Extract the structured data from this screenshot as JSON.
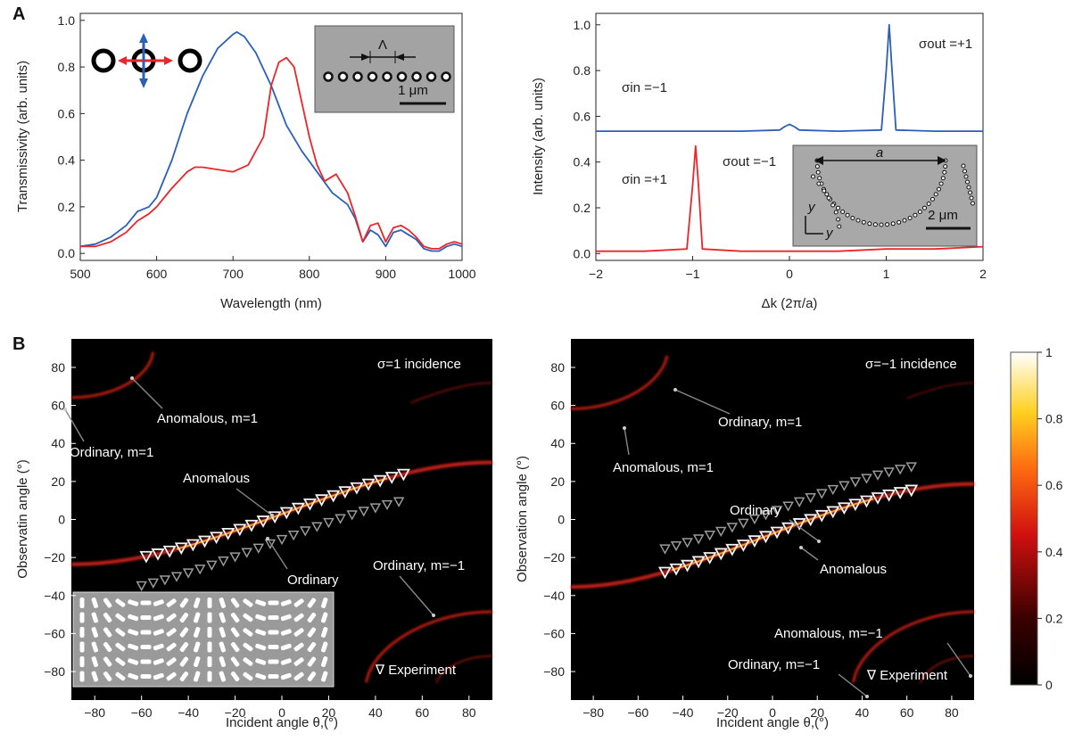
{
  "panel_labels": [
    "A",
    "B"
  ],
  "colors": {
    "blue": "#2b5fb8",
    "red": "#e8262b",
    "map_bg": "#000000"
  },
  "chart_data": [
    {
      "type": "line",
      "xlabel": "Wavelength (nm)",
      "ylabel": "Transmissivity (arb. units)",
      "xlim": [
        500,
        1000
      ],
      "ylim": [
        -0.03,
        1.03
      ],
      "xticks": [
        "500",
        "600",
        "700",
        "800",
        "900",
        "1000"
      ],
      "yticks": [
        "0.0",
        "0.2",
        "0.4",
        "0.6",
        "0.8",
        "1.0"
      ],
      "inset": {
        "period_symbol": "Λ",
        "scale_bar": "1 μm"
      },
      "series": [
        {
          "color": "#2b5fb8",
          "x": [
            500,
            520,
            540,
            560,
            575,
            590,
            600,
            620,
            640,
            660,
            680,
            700,
            705,
            715,
            730,
            750,
            770,
            790,
            810,
            830,
            850,
            860,
            870,
            880,
            890,
            900,
            910,
            920,
            930,
            940,
            950,
            960,
            970,
            980,
            990,
            1000
          ],
          "y": [
            0.03,
            0.04,
            0.07,
            0.12,
            0.18,
            0.2,
            0.24,
            0.4,
            0.6,
            0.76,
            0.88,
            0.94,
            0.95,
            0.93,
            0.86,
            0.72,
            0.55,
            0.44,
            0.35,
            0.26,
            0.21,
            0.15,
            0.05,
            0.1,
            0.08,
            0.03,
            0.09,
            0.1,
            0.08,
            0.06,
            0.02,
            0.01,
            0.01,
            0.03,
            0.04,
            0.03
          ]
        },
        {
          "color": "#e8262b",
          "x": [
            500,
            520,
            540,
            560,
            575,
            590,
            600,
            620,
            640,
            650,
            660,
            680,
            700,
            720,
            740,
            750,
            760,
            770,
            780,
            790,
            800,
            810,
            820,
            835,
            850,
            860,
            870,
            880,
            890,
            900,
            910,
            920,
            930,
            940,
            950,
            960,
            970,
            980,
            990,
            1000
          ],
          "y": [
            0.03,
            0.03,
            0.05,
            0.09,
            0.14,
            0.17,
            0.2,
            0.28,
            0.35,
            0.37,
            0.37,
            0.36,
            0.35,
            0.38,
            0.5,
            0.72,
            0.82,
            0.84,
            0.8,
            0.65,
            0.5,
            0.38,
            0.31,
            0.34,
            0.26,
            0.16,
            0.05,
            0.12,
            0.13,
            0.05,
            0.11,
            0.12,
            0.1,
            0.07,
            0.03,
            0.02,
            0.02,
            0.04,
            0.05,
            0.04
          ]
        }
      ]
    },
    {
      "type": "line",
      "xlabel": "Δk (2π/a)",
      "ylabel": "Intensity (arb. units)",
      "xlim": [
        -2,
        2
      ],
      "ylim": [
        -0.03,
        1.05
      ],
      "xticks": [
        "−2",
        "−1",
        "0",
        "1",
        "2"
      ],
      "yticks": [
        "0.0",
        "0.2",
        "0.4",
        "0.6",
        "0.8",
        "1.0"
      ],
      "annotations": {
        "s_in_top": "σin =−1",
        "s_out_top": "σout =+1",
        "s_in_bot": "σin =+1",
        "s_out_bot": "σout =−1"
      },
      "inset": {
        "length_label": "a",
        "axis_1": "y",
        "axis_2": "y",
        "scale_bar": "2 μm"
      },
      "series": [
        {
          "color": "#2b5fb8",
          "x": [
            -2,
            -1.5,
            -1,
            -0.5,
            -0.1,
            -0.05,
            0,
            0.05,
            0.1,
            0.5,
            0.95,
            1.0,
            1.03,
            1.06,
            1.1,
            1.5,
            2
          ],
          "y": [
            0.535,
            0.535,
            0.535,
            0.535,
            0.54,
            0.555,
            0.565,
            0.555,
            0.54,
            0.535,
            0.54,
            0.8,
            1.0,
            0.8,
            0.54,
            0.535,
            0.535
          ]
        },
        {
          "color": "#e8262b",
          "x": [
            -2,
            -1.5,
            -1.06,
            -1.0,
            -0.97,
            -0.94,
            -0.9,
            -0.5,
            0,
            0.5,
            1,
            1.5,
            2
          ],
          "y": [
            0.01,
            0.01,
            0.02,
            0.3,
            0.47,
            0.3,
            0.02,
            0.01,
            0.01,
            0.01,
            0.02,
            0.02,
            0.03
          ]
        }
      ]
    },
    {
      "type": "heatmap",
      "xlabel": "Incident angle θ,(°)",
      "ylabel": "Observatin angle (°)",
      "xlim": [
        -90,
        90
      ],
      "ylim": [
        -95,
        95
      ],
      "xticks": [
        "−80",
        "−60",
        "−40",
        "−20",
        "0",
        "20",
        "40",
        "60",
        "80"
      ],
      "yticks": [
        "80",
        "60",
        "40",
        "20",
        "0",
        "−20",
        "−40",
        "−60",
        "−80"
      ],
      "title_note": "σ=1 incidence",
      "legend": "∇ Experiment",
      "labels": [
        "Anomalous, m=1",
        "Ordinary, m=1",
        "Anomalous",
        "Ordinary",
        "Ordinary, m=−1"
      ],
      "anomalous_points_x": [
        -58,
        -53,
        -48,
        -43,
        -38,
        -33,
        -28,
        -23,
        -18,
        -13,
        -8,
        -3,
        2,
        7,
        12,
        17,
        22,
        27,
        32,
        37,
        42,
        47,
        52
      ],
      "ordinary_points_x": [
        -60,
        -55,
        -50,
        -45,
        -40,
        -35,
        -30,
        -25,
        -20,
        -15,
        -10,
        -5,
        0,
        5,
        10,
        15,
        20,
        25,
        30,
        35,
        40,
        45,
        50
      ]
    },
    {
      "type": "heatmap",
      "xlabel": "Incident angle θ,(°)",
      "ylabel": "Observation angle (°)",
      "xlim": [
        -90,
        90
      ],
      "ylim": [
        -95,
        95
      ],
      "xticks": [
        "−80",
        "−60",
        "−40",
        "−20",
        "0",
        "20",
        "40",
        "60",
        "80"
      ],
      "yticks": [
        "80",
        "60",
        "40",
        "20",
        "0",
        "−20",
        "−40",
        "−60",
        "−80"
      ],
      "title_note": "σ=−1 incidence",
      "legend": "∇ Experiment",
      "labels": [
        "Ordinary, m=1",
        "Anomalous, m=1",
        "Ordinary",
        "Anomalous",
        "Anomalous, m=−1",
        "Ordinary, m=−1"
      ],
      "anomalous_points_x": [
        -48,
        -43,
        -38,
        -33,
        -28,
        -23,
        -18,
        -13,
        -8,
        -3,
        2,
        7,
        12,
        17,
        22,
        27,
        32,
        37,
        42,
        47,
        52,
        57,
        62
      ],
      "ordinary_points_x": [
        -48,
        -43,
        -38,
        -33,
        -28,
        -23,
        -18,
        -13,
        -8,
        -3,
        2,
        7,
        12,
        17,
        22,
        27,
        32,
        37,
        42,
        47,
        52,
        57,
        62
      ],
      "colorbar": {
        "ticks": [
          "0",
          "0.2",
          "0.4",
          "0.6",
          "0.8",
          "1"
        ],
        "range": [
          0,
          1
        ]
      }
    }
  ]
}
